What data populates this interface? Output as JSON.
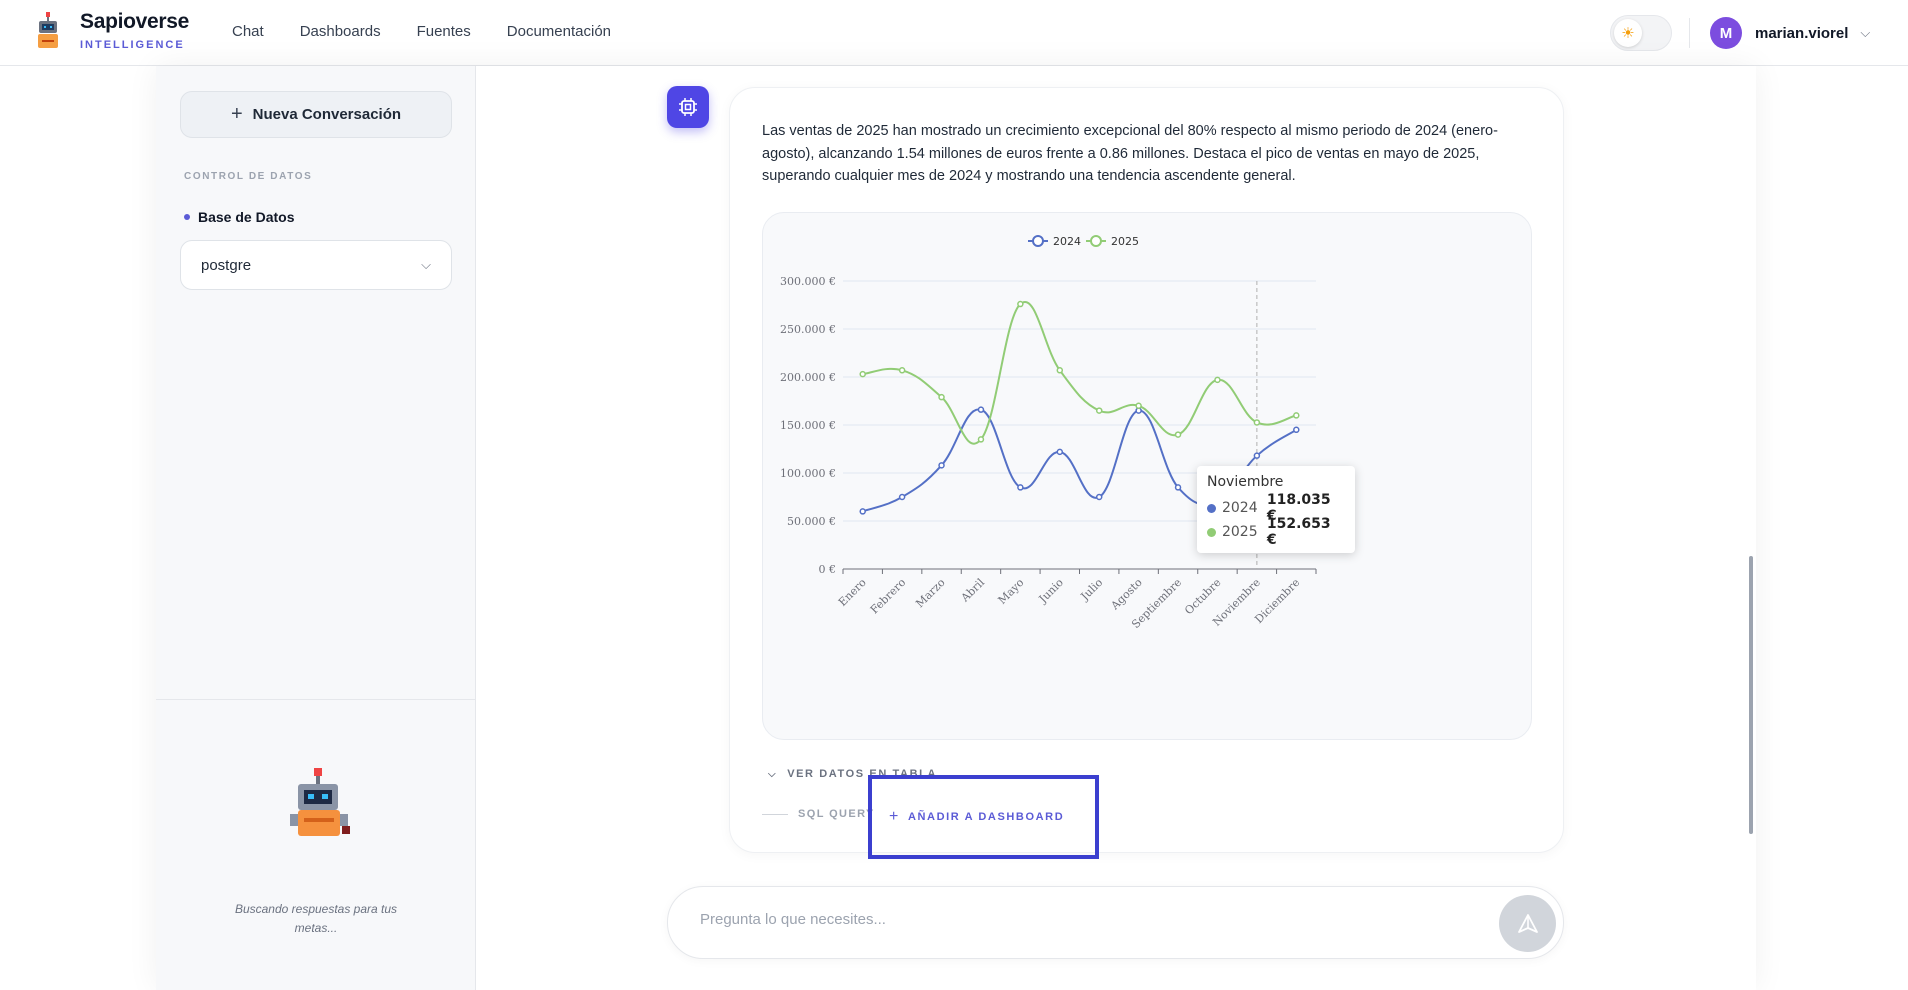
{
  "header": {
    "brand_name": "Sapioverse",
    "brand_sub": "INTELLIGENCE",
    "nav": [
      "Chat",
      "Dashboards",
      "Fuentes",
      "Documentación"
    ],
    "user": {
      "initial": "M",
      "name": "marian.viorel"
    }
  },
  "sidebar": {
    "new_conversation": "Nueva Conversación",
    "section_label": "CONTROL DE DATOS",
    "db_label": "Base de Datos",
    "db_value": "postgre",
    "loading_text": "Buscando respuestas para tus metas..."
  },
  "message": {
    "text": "Las ventas de 2025 han mostrado un crecimiento excepcional del 80% respecto al mismo periodo de 2024 (enero-agosto), alcanzando 1.54 millones de euros frente a 0.86 millones. Destaca el pico de ventas en mayo de 2025, superando cualquier mes de 2024 y mostrando una tendencia ascendente general.",
    "ver_datos": "VER DATOS EN TABLA",
    "sql_tab": "SQL QUERY",
    "add_dashboard": "AÑADIR A DASHBOARD"
  },
  "tooltip": {
    "title": "Noviembre",
    "rows": [
      {
        "name": "2024",
        "value": "118.035 €",
        "color": "#5470c6"
      },
      {
        "name": "2025",
        "value": "152.653 €",
        "color": "#91cc75"
      }
    ]
  },
  "input": {
    "placeholder": "Pregunta lo que necesites..."
  },
  "chart_data": {
    "type": "line",
    "categories": [
      "Enero",
      "Febrero",
      "Marzo",
      "Abril",
      "Mayo",
      "Junio",
      "Julio",
      "Agosto",
      "Septiembre",
      "Octubre",
      "Noviembre",
      "Diciembre"
    ],
    "series": [
      {
        "name": "2024",
        "color": "#5470c6",
        "values": [
          60000,
          75000,
          108000,
          166000,
          85000,
          122000,
          75000,
          165000,
          85000,
          71000,
          118035,
          145000
        ]
      },
      {
        "name": "2025",
        "color": "#91cc75",
        "values": [
          203000,
          207000,
          179000,
          135000,
          276000,
          207000,
          165000,
          170000,
          140000,
          197000,
          152653,
          160000
        ]
      }
    ],
    "yticks": [
      "0 €",
      "50.000 €",
      "100.000 €",
      "150.000 €",
      "200.000 €",
      "250.000 €",
      "300.000 €"
    ],
    "ylim": [
      0,
      300000
    ],
    "grid": true,
    "legend": "top-center",
    "highlighted_category": "Noviembre"
  }
}
